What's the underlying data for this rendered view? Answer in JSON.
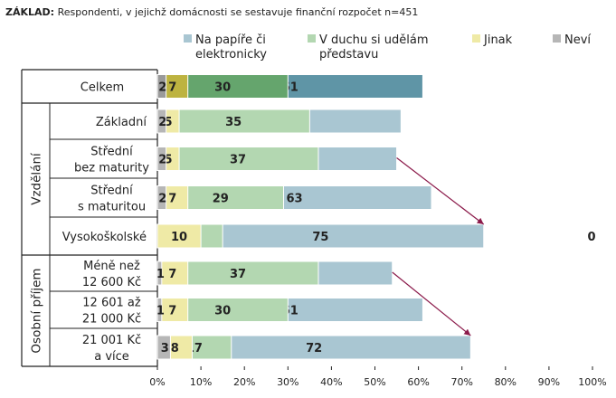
{
  "basis": {
    "prefix": "ZÁKLAD:",
    "text": "Respondenti, v jejichž domácnosti se sestavuje finanční rozpočet n=451"
  },
  "colors": {
    "paper": "#a9c6d2",
    "paper_highlight": "#5f95a6",
    "mind": "#b3d7b1",
    "mind_highlight": "#65a56d",
    "other": "#efeaa6",
    "other_highlight": "#bdb340",
    "unknown": "#b6b6b6",
    "unknown_highlight": "#9a9a9a",
    "arrow": "#8b1a4a"
  },
  "chart_data": {
    "type": "bar",
    "orientation": "horizontal",
    "stacked": true,
    "xlim": [
      0,
      100
    ],
    "x_tick_labels": [
      "0%",
      "10%",
      "20%",
      "30%",
      "40%",
      "50%",
      "60%",
      "70%",
      "80%",
      "90%",
      "100%"
    ],
    "series_names": [
      "Na papíře či elektronicky",
      "V duchu si udělám představu",
      "Jinak",
      "Neví"
    ],
    "legend": [
      {
        "key": "paper",
        "lines": [
          "Na papíře či",
          "elektronicky"
        ]
      },
      {
        "key": "mind",
        "lines": [
          "V duchu si udělám",
          "představu"
        ]
      },
      {
        "key": "other",
        "lines": [
          "Jinak"
        ]
      },
      {
        "key": "unknown",
        "lines": [
          "Neví"
        ]
      }
    ],
    "groups": [
      {
        "label": "Vzdělání",
        "rows": [
          1,
          4
        ]
      },
      {
        "label": "Osobní příjem",
        "rows": [
          5,
          7
        ]
      }
    ],
    "rows": [
      {
        "lines": [
          "Celkem"
        ],
        "values": [
          61,
          30,
          7,
          2
        ],
        "highlight": true
      },
      {
        "lines": [
          "Základní"
        ],
        "values": [
          56,
          35,
          5,
          2
        ]
      },
      {
        "lines": [
          "Střední",
          "bez maturity"
        ],
        "values": [
          55,
          37,
          5,
          2
        ]
      },
      {
        "lines": [
          "Střední",
          "s maturitou"
        ],
        "values": [
          63,
          29,
          7,
          2
        ]
      },
      {
        "lines": [
          "Vysokoškolské"
        ],
        "values": [
          75,
          15,
          10,
          0
        ]
      },
      {
        "lines": [
          "Méně než",
          "12 600 Kč"
        ],
        "values": [
          54,
          37,
          7,
          1
        ]
      },
      {
        "lines": [
          "12 601 až",
          "21 000 Kč"
        ],
        "values": [
          61,
          30,
          7,
          1
        ]
      },
      {
        "lines": [
          "21 001 Kč",
          "a více"
        ],
        "values": [
          72,
          17,
          8,
          3
        ]
      }
    ],
    "arrows": [
      {
        "from_row": 2,
        "to_row": 4
      },
      {
        "from_row": 5,
        "to_row": 7
      }
    ]
  }
}
